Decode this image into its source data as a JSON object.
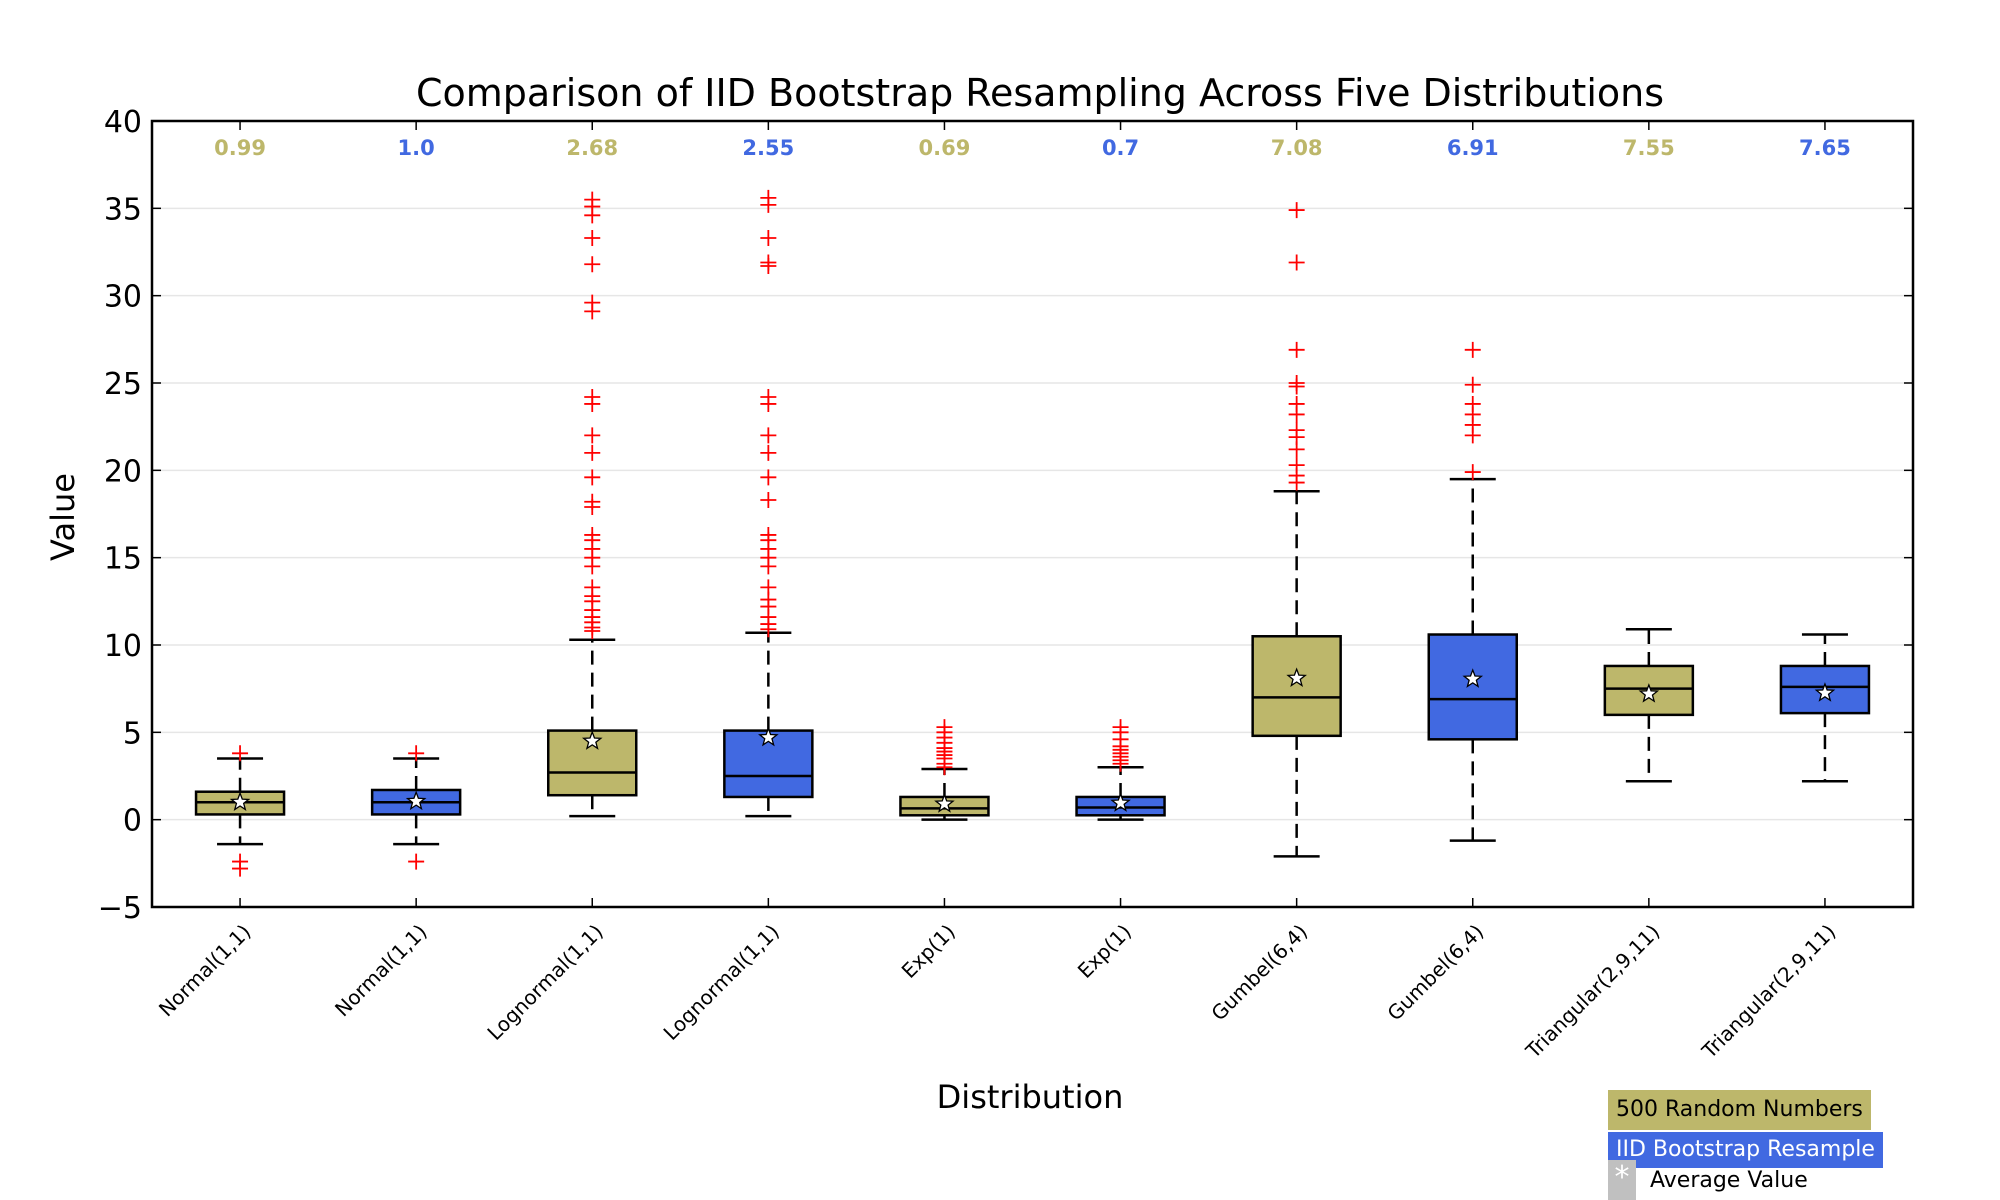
{
  "chart_data": {
    "type": "box",
    "title": "Comparison of IID Bootstrap Resampling Across Five Distributions",
    "xlabel": "Distribution",
    "ylabel": "Value",
    "ylim": [
      -5,
      40
    ],
    "yticks": [
      -5,
      0,
      5,
      10,
      15,
      20,
      25,
      30,
      35,
      40
    ],
    "ytick_labels": [
      "−5",
      "0",
      "5",
      "10",
      "15",
      "20",
      "25",
      "30",
      "35",
      "40"
    ],
    "grid": "horizontal",
    "colors": {
      "random": "#bdb76b",
      "iid": "#4169e1",
      "outlier": "#ff0000",
      "whisker": "#000000",
      "star": "#ffffff",
      "legend_star_bg": "#c0c0c0"
    },
    "categories": [
      "Normal(1,1)",
      "Normal(1,1)",
      "Lognormal(1,1)",
      "Lognormal(1,1)",
      "Exp(1)",
      "Exp(1)",
      "Gumbel(6,4)",
      "Gumbel(6,4)",
      "Triangular(2,9,11)",
      "Triangular(2,9,11)"
    ],
    "boxes": [
      {
        "label": "Normal(1,1)",
        "group": "random",
        "median_label": "0.99",
        "whislo": -1.4,
        "q1": 0.3,
        "med": 1.0,
        "q3": 1.6,
        "whishi": 3.5,
        "mean": 1.0,
        "fliers": [
          -2.4,
          -2.8,
          3.8
        ]
      },
      {
        "label": "Normal(1,1)",
        "group": "iid",
        "median_label": "1.0",
        "whislo": -1.4,
        "q1": 0.3,
        "med": 1.0,
        "q3": 1.7,
        "whishi": 3.5,
        "mean": 1.05,
        "fliers": [
          -2.4,
          3.8
        ]
      },
      {
        "label": "Lognormal(1,1)",
        "group": "random",
        "median_label": "2.68",
        "whislo": 0.2,
        "q1": 1.4,
        "med": 2.7,
        "q3": 5.1,
        "whishi": 10.3,
        "mean": 4.5,
        "fliers": [
          10.8,
          11.0,
          11.3,
          11.6,
          12.0,
          12.5,
          12.8,
          13.3,
          14.5,
          15.0,
          15.5,
          16.0,
          16.3,
          17.9,
          18.2,
          19.6,
          21.0,
          22.0,
          23.8,
          24.2,
          29.1,
          29.6,
          31.8,
          33.3,
          34.6,
          35.1,
          35.5
        ]
      },
      {
        "label": "Lognormal(1,1)",
        "group": "iid",
        "median_label": "2.55",
        "whislo": 0.2,
        "q1": 1.3,
        "med": 2.5,
        "q3": 5.1,
        "whishi": 10.7,
        "mean": 4.7,
        "fliers": [
          10.9,
          11.2,
          11.6,
          12.2,
          12.6,
          13.3,
          14.5,
          15.0,
          15.5,
          16.0,
          16.3,
          18.3,
          19.6,
          21.0,
          22.0,
          23.8,
          24.2,
          31.7,
          31.9,
          33.3,
          35.2,
          35.6
        ]
      },
      {
        "label": "Exp(1)",
        "group": "random",
        "median_label": "0.69",
        "whislo": 0.0,
        "q1": 0.25,
        "med": 0.65,
        "q3": 1.3,
        "whishi": 2.9,
        "mean": 0.9,
        "fliers": [
          3.0,
          3.2,
          3.5,
          3.7,
          3.9,
          4.1,
          4.4,
          4.7,
          5.0,
          5.3
        ]
      },
      {
        "label": "Exp(1)",
        "group": "iid",
        "median_label": "0.7",
        "whislo": 0.0,
        "q1": 0.25,
        "med": 0.7,
        "q3": 1.3,
        "whishi": 3.0,
        "mean": 0.95,
        "fliers": [
          3.2,
          3.4,
          3.6,
          3.8,
          4.0,
          4.2,
          4.6,
          5.0,
          5.3
        ]
      },
      {
        "label": "Gumbel(6,4)",
        "group": "random",
        "median_label": "7.08",
        "whislo": -2.1,
        "q1": 4.8,
        "med": 7.0,
        "q3": 10.5,
        "whishi": 18.8,
        "mean": 8.1,
        "fliers": [
          19.3,
          19.7,
          20.3,
          21.2,
          21.9,
          22.3,
          23.2,
          23.8,
          24.8,
          25.0,
          26.9,
          31.9,
          34.9
        ]
      },
      {
        "label": "Gumbel(6,4)",
        "group": "iid",
        "median_label": "6.91",
        "whislo": -1.2,
        "q1": 4.6,
        "med": 6.9,
        "q3": 10.6,
        "whishi": 19.5,
        "mean": 8.05,
        "fliers": [
          19.9,
          22.0,
          22.6,
          23.2,
          23.8,
          24.9,
          26.9
        ]
      },
      {
        "label": "Triangular(2,9,11)",
        "group": "random",
        "median_label": "7.55",
        "whislo": 2.2,
        "q1": 6.0,
        "med": 7.5,
        "q3": 8.8,
        "whishi": 10.9,
        "mean": 7.2,
        "fliers": []
      },
      {
        "label": "Triangular(2,9,11)",
        "group": "iid",
        "median_label": "7.65",
        "whislo": 2.2,
        "q1": 6.1,
        "med": 7.6,
        "q3": 8.8,
        "whishi": 10.6,
        "mean": 7.25,
        "fliers": []
      }
    ],
    "legend": {
      "placement": "bottom-right",
      "random_label": "500 Random Numbers",
      "iid_label": "IID Bootstrap Resample",
      "star_symbol": "*",
      "average_label": "Average Value"
    }
  }
}
